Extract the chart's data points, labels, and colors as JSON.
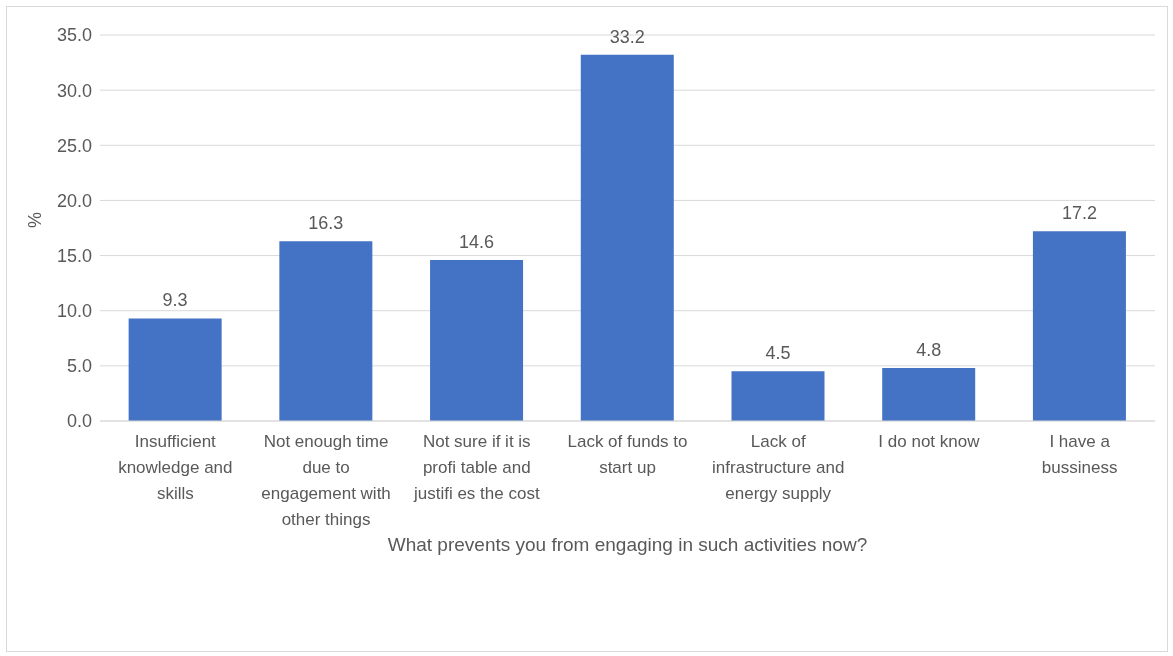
{
  "chart_data": {
    "type": "bar",
    "categories": [
      "Insufficient knowledge and skills",
      "Not enough time due to engagement with other things",
      "Not sure if it is profi table and justifi es the cost",
      "Lack of funds to start up",
      "Lack of infrastructure and energy supply",
      "I do not know",
      "I have a bussiness"
    ],
    "values": [
      9.3,
      16.3,
      14.6,
      33.2,
      4.5,
      4.8,
      17.2
    ],
    "color": "#4472c4",
    "ylabel": "%",
    "xlabel": "What prevents you from engaging in such activities now?",
    "ylim": [
      0,
      35
    ],
    "yticks": [
      {
        "value": 0,
        "label": "0.0"
      },
      {
        "value": 5,
        "label": "5.0"
      },
      {
        "value": 10,
        "label": "10.0"
      },
      {
        "value": 15,
        "label": "15.0"
      },
      {
        "value": 20,
        "label": "20.0"
      },
      {
        "value": 25,
        "label": "25.0"
      },
      {
        "value": 30,
        "label": "30.0"
      },
      {
        "value": 35,
        "label": "35.0"
      }
    ],
    "grid": "y",
    "data_labels": true
  }
}
